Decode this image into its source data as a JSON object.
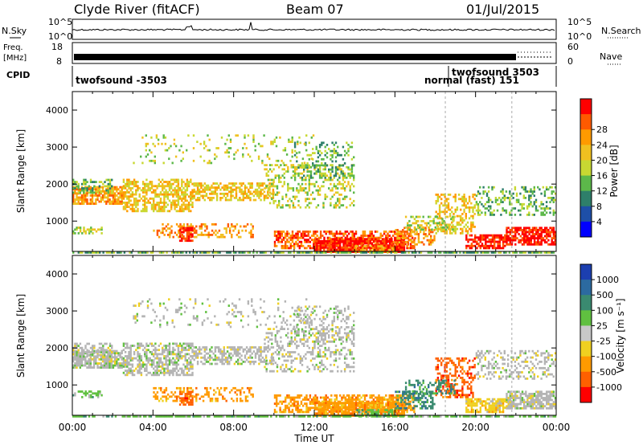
{
  "header": {
    "station": "Clyde River (fitACF)",
    "beam": "Beam 07",
    "date": "01/Jul/2015"
  },
  "top_panels": {
    "nsky_label": "N.Sky",
    "nsearch_label": "N.Search",
    "noise_ticks_left": [
      "10^5",
      "10^0"
    ],
    "noise_ticks_right": [
      "10^5",
      "10^0"
    ],
    "freq_label_1": "Freq.",
    "freq_label_2": "[MHz]",
    "freq_ticks": [
      "18",
      "8"
    ],
    "nave_label": "Nave",
    "nave_ticks": [
      "60",
      "0"
    ],
    "cpid_label": "CPID",
    "cpid_segments": [
      {
        "label": "twofsound -3503",
        "start_hour": 0.0
      },
      {
        "label": "normal (fast) 151",
        "start_hour": 18.5
      },
      {
        "label": "twofsound 3503",
        "start_hour": 18.5
      }
    ]
  },
  "chart_data": [
    {
      "type": "heatmap",
      "panel": "power",
      "xlabel": "Time UT",
      "ylabel": "Slant Range [km]",
      "xlim": [
        0,
        24
      ],
      "ylim": [
        180,
        4500
      ],
      "x_ticks": [
        "00:00",
        "04:00",
        "08:00",
        "12:00",
        "16:00",
        "20:00",
        "00:00"
      ],
      "y_ticks": [
        1000,
        2000,
        3000,
        4000
      ],
      "colorbar": {
        "label": "Power [dB]",
        "ticks": [
          "4",
          "8",
          "12",
          "16",
          "20",
          "24",
          "28"
        ],
        "colors": [
          "#0000ff",
          "#1e4fa8",
          "#2e7f6a",
          "#5cb84a",
          "#c8d832",
          "#f0c020",
          "#ff9a00",
          "#ff5a00",
          "#ff0000"
        ]
      }
    },
    {
      "type": "heatmap",
      "panel": "velocity",
      "xlabel": "Time UT",
      "ylabel": "Slant Range [km]",
      "xlim": [
        0,
        24
      ],
      "ylim": [
        180,
        4500
      ],
      "x_ticks": [
        "00:00",
        "04:00",
        "08:00",
        "12:00",
        "16:00",
        "20:00",
        "00:00"
      ],
      "y_ticks": [
        1000,
        2000,
        3000,
        4000
      ],
      "colorbar": {
        "label": "Velocity [m s⁻¹]",
        "ticks": [
          "1000",
          "500",
          "100",
          "25",
          "-25",
          "-100",
          "-500",
          "-1000"
        ],
        "colors": [
          "#1c3fb0",
          "#2c6aa0",
          "#3a8a70",
          "#60c040",
          "#c8c8c8",
          "#f0d020",
          "#ff9a00",
          "#ff6000",
          "#ff0000"
        ]
      }
    }
  ],
  "colors": {
    "ground_scatter": "#b4b4b4"
  }
}
